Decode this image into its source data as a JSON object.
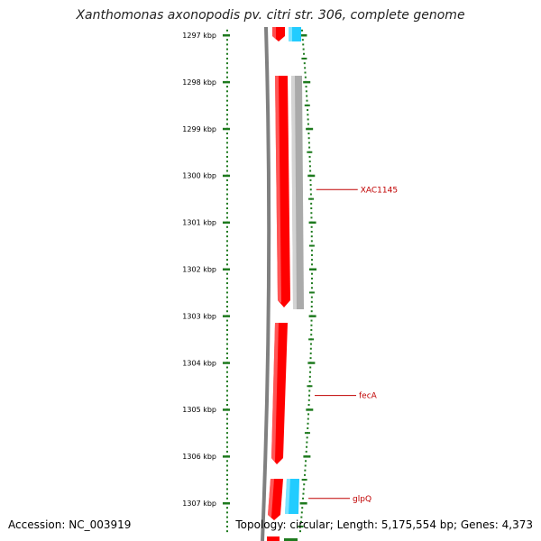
{
  "title": "Xanthomonas axonopodis pv. citri str. 306, complete genome",
  "footer": {
    "accession": "Accession: NC_003919",
    "summary": "Topology: circular; Length: 5,175,554 bp; Genes: 4,373"
  },
  "ruler": {
    "unit": "kbp",
    "ticks": [
      {
        "kbp": 1297,
        "label": "1297 kbp"
      },
      {
        "kbp": 1298,
        "label": "1298 kbp"
      },
      {
        "kbp": 1299,
        "label": "1299 kbp"
      },
      {
        "kbp": 1300,
        "label": "1300 kbp"
      },
      {
        "kbp": 1301,
        "label": "1301 kbp"
      },
      {
        "kbp": 1302,
        "label": "1302 kbp"
      },
      {
        "kbp": 1303,
        "label": "1303 kbp"
      },
      {
        "kbp": 1304,
        "label": "1304 kbp"
      },
      {
        "kbp": 1305,
        "label": "1305 kbp"
      },
      {
        "kbp": 1306,
        "label": "1306 kbp"
      },
      {
        "kbp": 1307,
        "label": "1307 kbp"
      }
    ]
  },
  "gene_labels": [
    {
      "name": "XAC1145",
      "kbp": 1300.3
    },
    {
      "name": "fecA",
      "kbp": 1304.7
    },
    {
      "name": "glpQ",
      "kbp": 1306.9
    }
  ],
  "colors": {
    "forward_gene": "#ff0000",
    "reverse_gene": "#aaaaaa",
    "rna_gene": "#22ccff",
    "tick": "#1e7a1e",
    "label": "#c00000"
  }
}
